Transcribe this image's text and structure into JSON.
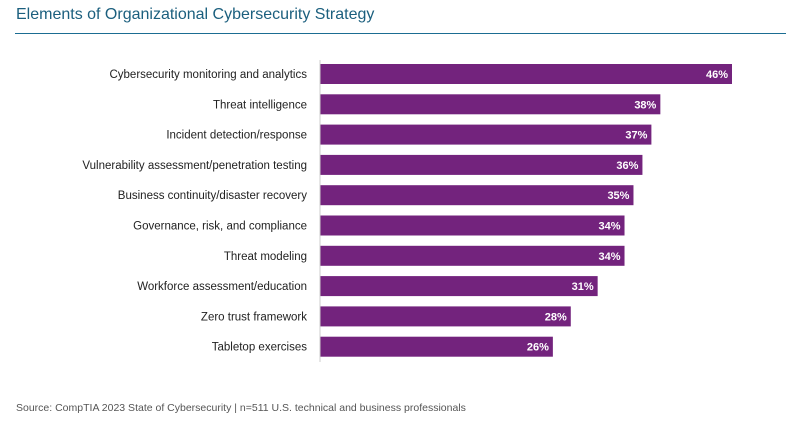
{
  "chart_data": {
    "type": "bar",
    "orientation": "horizontal",
    "title": "Elements of Organizational Cybersecurity Strategy",
    "categories": [
      "Cybersecurity monitoring and analytics",
      "Threat intelligence",
      "Incident detection/response",
      "Vulnerability assessment/penetration testing",
      "Business continuity/disaster recovery",
      "Governance, risk, and compliance",
      "Threat modeling",
      "Workforce assessment/education",
      "Zero trust framework",
      "Tabletop exercises"
    ],
    "values": [
      46,
      38,
      37,
      36,
      35,
      34,
      34,
      31,
      28,
      26
    ],
    "labels": [
      "46%",
      "38%",
      "37%",
      "36%",
      "35%",
      "34%",
      "34%",
      "31%",
      "28%",
      "26%"
    ],
    "unit": "%",
    "xlim": [
      0,
      46
    ],
    "grid": false,
    "bar_color": "#73237d",
    "source": "Source: CompTIA 2023 State of Cybersecurity | n=511 U.S. technical and business professionals"
  }
}
